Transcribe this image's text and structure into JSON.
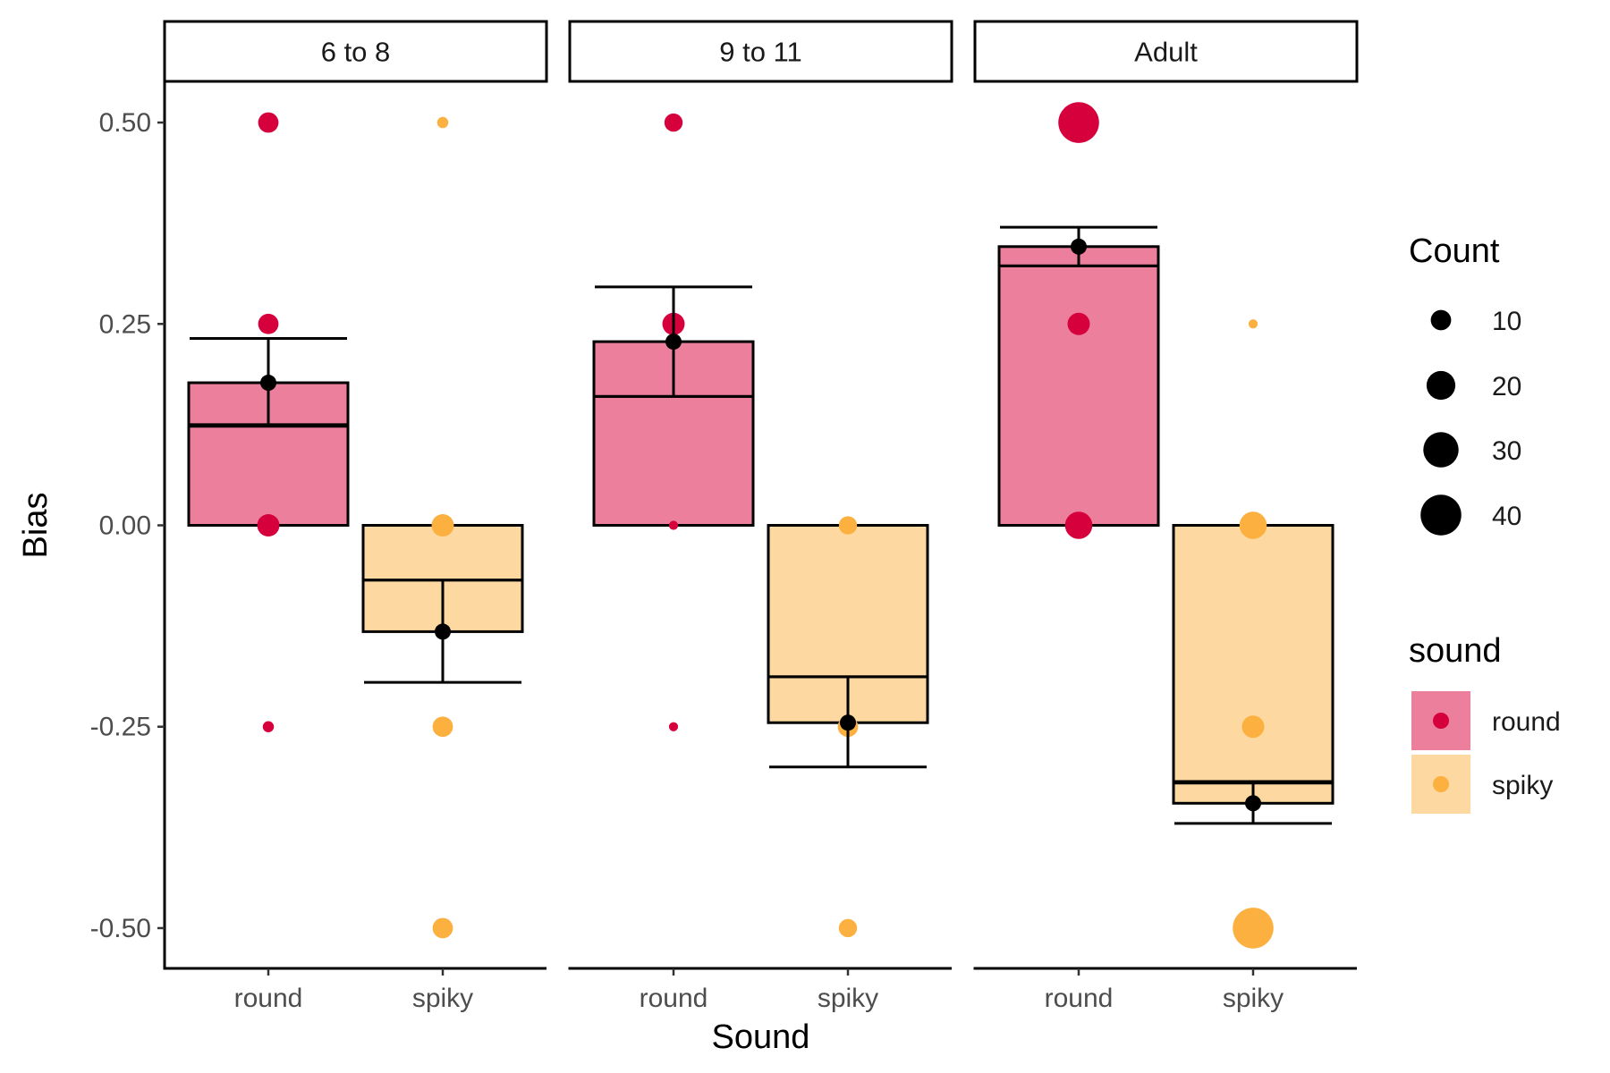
{
  "chart_data": {
    "type": "box",
    "facets": [
      "6 to 8",
      "9 to 11",
      "Adult"
    ],
    "categories": [
      "round",
      "spiky"
    ],
    "xlabel": "Sound",
    "ylabel": "Bias",
    "ylim": [
      -0.55,
      0.55
    ],
    "yticks": [
      0.5,
      0.25,
      0.0,
      -0.25,
      -0.5
    ],
    "ytick_labels": [
      "0.50",
      "0.25",
      "0.00",
      "-0.25",
      "-0.50"
    ],
    "colors": {
      "round": "#d6003c",
      "spiky": "#fbb040"
    },
    "box_fill": {
      "round": "#eb7f9c",
      "spiky": "#fdd8a0"
    },
    "boxes": [
      {
        "facet": "6 to 8",
        "sound": "round",
        "lower": 0.0,
        "median": 0.123,
        "upper": 0.177
      },
      {
        "facet": "6 to 8",
        "sound": "spiky",
        "lower": -0.132,
        "median": -0.068,
        "upper": 0.0
      },
      {
        "facet": "9 to 11",
        "sound": "round",
        "lower": 0.0,
        "median": 0.16,
        "upper": 0.228
      },
      {
        "facet": "9 to 11",
        "sound": "spiky",
        "lower": -0.245,
        "median": -0.188,
        "upper": 0.0
      },
      {
        "facet": "Adult",
        "sound": "round",
        "lower": 0.0,
        "median": 0.322,
        "upper": 0.346
      },
      {
        "facet": "Adult",
        "sound": "spiky",
        "lower": -0.345,
        "median": -0.318,
        "upper": 0.0
      }
    ],
    "means": [
      {
        "facet": "6 to 8",
        "sound": "round",
        "mean": 0.177,
        "ci_low": 0.125,
        "ci_high": 0.232
      },
      {
        "facet": "6 to 8",
        "sound": "spiky",
        "mean": -0.132,
        "ci_low": -0.195,
        "ci_high": -0.068
      },
      {
        "facet": "9 to 11",
        "sound": "round",
        "mean": 0.228,
        "ci_low": 0.16,
        "ci_high": 0.296
      },
      {
        "facet": "9 to 11",
        "sound": "spiky",
        "mean": -0.245,
        "ci_low": -0.3,
        "ci_high": -0.188
      },
      {
        "facet": "Adult",
        "sound": "round",
        "mean": 0.346,
        "ci_low": 0.322,
        "ci_high": 0.37
      },
      {
        "facet": "Adult",
        "sound": "spiky",
        "mean": -0.345,
        "ci_low": -0.37,
        "ci_high": -0.32
      }
    ],
    "points": [
      {
        "facet": "6 to 8",
        "sound": "round",
        "bias": 0.5,
        "count": 10
      },
      {
        "facet": "6 to 8",
        "sound": "round",
        "bias": 0.25,
        "count": 10
      },
      {
        "facet": "6 to 8",
        "sound": "round",
        "bias": 0.0,
        "count": 12
      },
      {
        "facet": "6 to 8",
        "sound": "round",
        "bias": -0.25,
        "count": 3
      },
      {
        "facet": "6 to 8",
        "sound": "spiky",
        "bias": 0.5,
        "count": 3
      },
      {
        "facet": "6 to 8",
        "sound": "spiky",
        "bias": 0.0,
        "count": 12
      },
      {
        "facet": "6 to 8",
        "sound": "spiky",
        "bias": -0.25,
        "count": 10
      },
      {
        "facet": "6 to 8",
        "sound": "spiky",
        "bias": -0.5,
        "count": 10
      },
      {
        "facet": "9 to 11",
        "sound": "round",
        "bias": 0.5,
        "count": 8
      },
      {
        "facet": "9 to 11",
        "sound": "round",
        "bias": 0.25,
        "count": 12
      },
      {
        "facet": "9 to 11",
        "sound": "round",
        "bias": 0.0,
        "count": 2
      },
      {
        "facet": "9 to 11",
        "sound": "round",
        "bias": -0.25,
        "count": 2
      },
      {
        "facet": "9 to 11",
        "sound": "spiky",
        "bias": 0.0,
        "count": 8
      },
      {
        "facet": "9 to 11",
        "sound": "spiky",
        "bias": -0.25,
        "count": 10
      },
      {
        "facet": "9 to 11",
        "sound": "spiky",
        "bias": -0.5,
        "count": 8
      },
      {
        "facet": "Adult",
        "sound": "round",
        "bias": 0.5,
        "count": 40
      },
      {
        "facet": "Adult",
        "sound": "round",
        "bias": 0.25,
        "count": 12
      },
      {
        "facet": "Adult",
        "sound": "round",
        "bias": 0.0,
        "count": 18
      },
      {
        "facet": "Adult",
        "sound": "spiky",
        "bias": 0.25,
        "count": 2
      },
      {
        "facet": "Adult",
        "sound": "spiky",
        "bias": 0.0,
        "count": 18
      },
      {
        "facet": "Adult",
        "sound": "spiky",
        "bias": -0.25,
        "count": 12
      },
      {
        "facet": "Adult",
        "sound": "spiky",
        "bias": -0.5,
        "count": 40
      }
    ],
    "legend": {
      "position": "right",
      "count_title": "Count",
      "count_values": [
        10,
        20,
        30,
        40
      ],
      "count_labels": [
        "10",
        "20",
        "30",
        "40"
      ],
      "sound_title": "sound",
      "sound_labels": [
        "round",
        "spiky"
      ]
    }
  }
}
